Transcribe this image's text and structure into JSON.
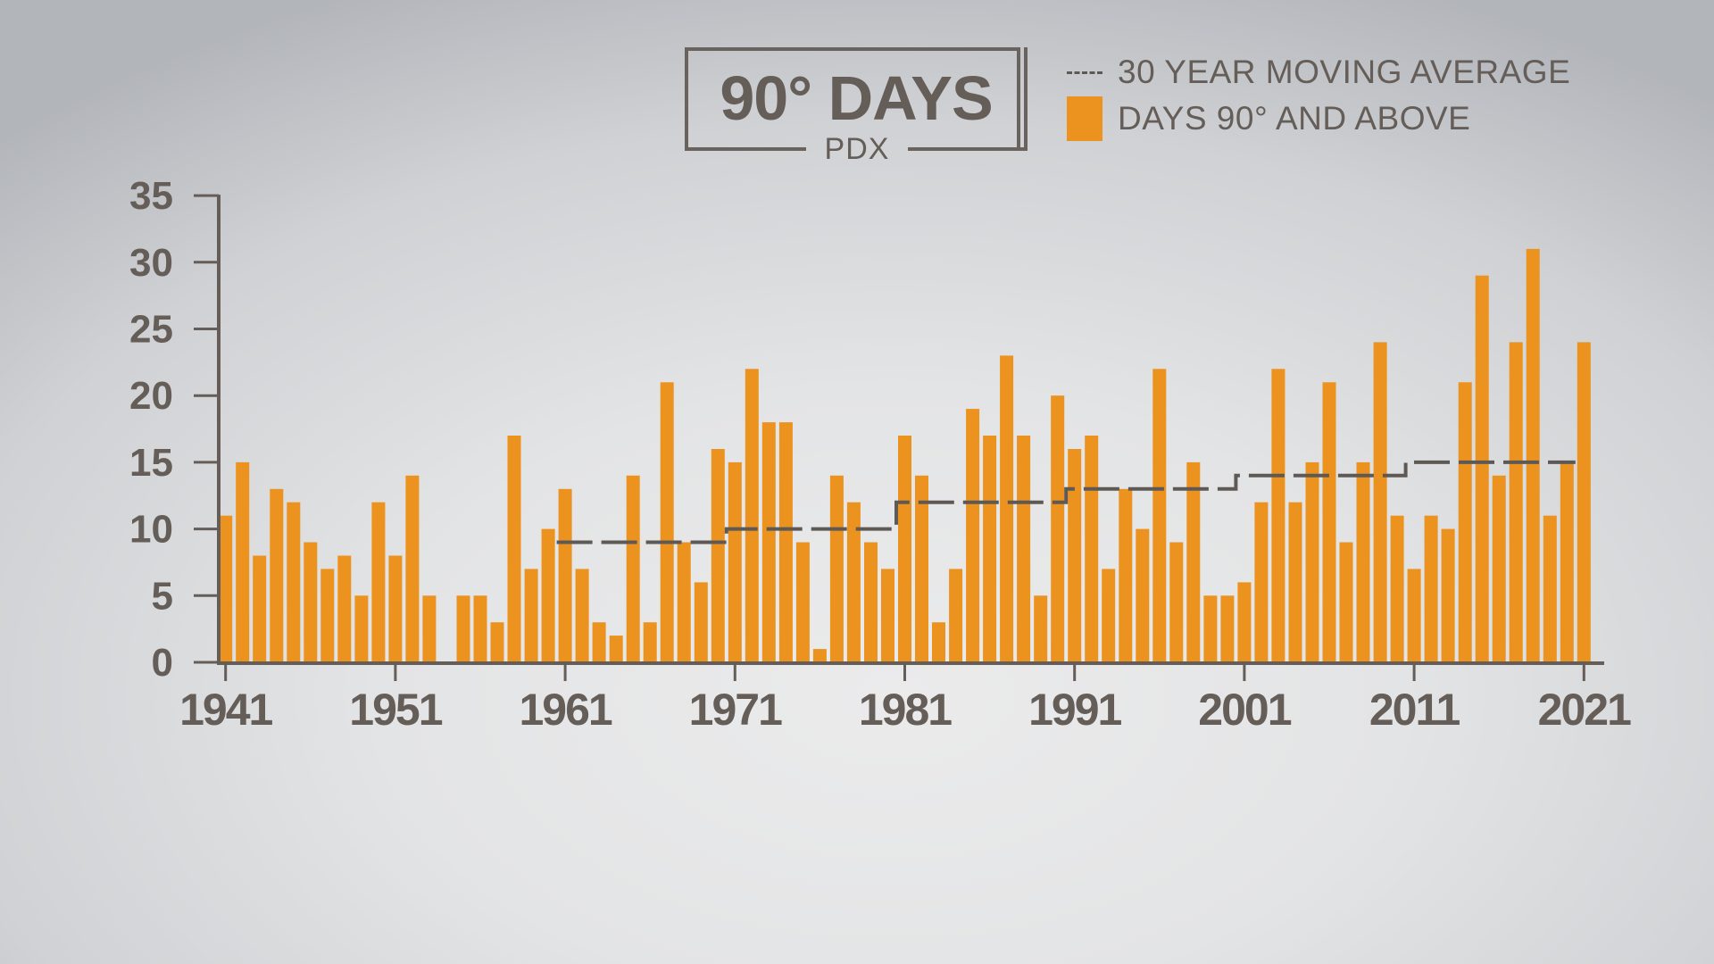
{
  "title": {
    "main": "90° DAYS",
    "sub": "PDX"
  },
  "legend": {
    "items": [
      {
        "label": "30 YEAR MOVING AVERAGE",
        "marker": "dashed-line",
        "color": "#5f5955"
      },
      {
        "label": "DAYS 90° AND ABOVE",
        "marker": "square-swatch",
        "color": "#ec921f"
      }
    ]
  },
  "colors": {
    "bar": "#ec921f",
    "axis": "#655d58",
    "average_line": "#5f5955"
  },
  "chart_data": {
    "type": "bar",
    "title": "90° DAYS",
    "subtitle": "PDX",
    "xlabel": "",
    "ylabel": "",
    "ylim": [
      0,
      35
    ],
    "yticks": [
      0,
      5,
      10,
      15,
      20,
      25,
      30,
      35
    ],
    "xticks": [
      "1941",
      "1951",
      "1961",
      "1971",
      "1981",
      "1991",
      "2001",
      "2011",
      "2021"
    ],
    "grid": false,
    "legend_position": "top-right",
    "categories": [
      1941,
      1942,
      1943,
      1944,
      1945,
      1946,
      1947,
      1948,
      1949,
      1950,
      1951,
      1952,
      1953,
      1954,
      1955,
      1956,
      1957,
      1958,
      1959,
      1960,
      1961,
      1962,
      1963,
      1964,
      1965,
      1966,
      1967,
      1968,
      1969,
      1970,
      1971,
      1972,
      1973,
      1974,
      1975,
      1976,
      1977,
      1978,
      1979,
      1980,
      1981,
      1982,
      1983,
      1984,
      1985,
      1986,
      1987,
      1988,
      1989,
      1990,
      1991,
      1992,
      1993,
      1994,
      1995,
      1996,
      1997,
      1998,
      1999,
      2000,
      2001,
      2002,
      2003,
      2004,
      2005,
      2006,
      2007,
      2008,
      2009,
      2010,
      2011,
      2012,
      2013,
      2014,
      2015,
      2016,
      2017,
      2018,
      2019,
      2020,
      2021
    ],
    "series": [
      {
        "name": "DAYS 90° AND ABOVE",
        "type": "bar",
        "values": [
          11,
          15,
          8,
          13,
          12,
          9,
          7,
          8,
          5,
          12,
          8,
          14,
          5,
          0,
          5,
          5,
          3,
          17,
          7,
          10,
          13,
          7,
          3,
          2,
          14,
          3,
          21,
          9,
          6,
          16,
          15,
          22,
          18,
          18,
          9,
          1,
          14,
          12,
          9,
          7,
          17,
          14,
          3,
          7,
          19,
          17,
          23,
          17,
          5,
          20,
          16,
          17,
          7,
          13,
          10,
          22,
          9,
          15,
          5,
          5,
          6,
          12,
          22,
          12,
          15,
          21,
          9,
          15,
          24,
          11,
          7,
          11,
          10,
          21,
          29,
          14,
          24,
          31,
          11,
          15,
          24
        ]
      },
      {
        "name": "30 YEAR MOVING AVERAGE",
        "type": "step-line-dashed",
        "segments": [
          {
            "from": 1960.5,
            "to": 1970.5,
            "value": 9
          },
          {
            "from": 1970.5,
            "to": 1980.5,
            "value": 10
          },
          {
            "from": 1980.5,
            "to": 1990.5,
            "value": 12
          },
          {
            "from": 1990.5,
            "to": 2000.5,
            "value": 13
          },
          {
            "from": 2000.5,
            "to": 2010.5,
            "value": 14
          },
          {
            "from": 2010.5,
            "to": 2020.5,
            "value": 15
          }
        ]
      }
    ]
  }
}
